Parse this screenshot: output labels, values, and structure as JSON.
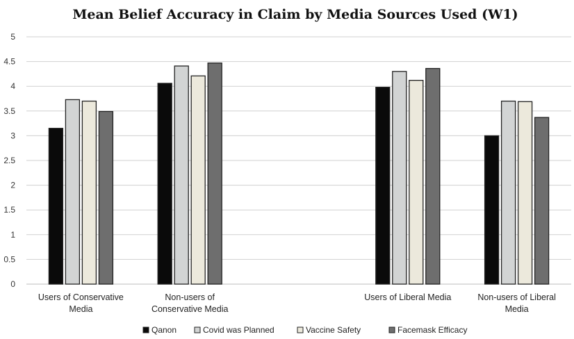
{
  "chart_data": {
    "type": "bar",
    "title": "Mean Belief Accuracy in Claim by Media Sources Used (W1)",
    "xlabel": "",
    "ylabel": "",
    "ylim": [
      0,
      5
    ],
    "yticks": [
      "0",
      "0.5",
      "1",
      "1.5",
      "2",
      "2.5",
      "3",
      "3.5",
      "4",
      "4.5",
      "5"
    ],
    "grid": true,
    "legend_position": "bottom",
    "categories": [
      [
        "Users of Conservative",
        "Media"
      ],
      [
        "Non-users of",
        "Conservative Media"
      ],
      [
        "Users of Liberal Media"
      ],
      [
        "Non-users of Liberal",
        "Media"
      ]
    ],
    "category_slots": [
      0,
      1,
      3,
      4
    ],
    "series": [
      {
        "name": "Qanon",
        "color": "#0a0a0a",
        "values": [
          3.15,
          4.06,
          3.98,
          3.0
        ]
      },
      {
        "name": "Covid was Planned",
        "color": "#d2d4d4",
        "values": [
          3.73,
          4.41,
          4.3,
          3.7
        ]
      },
      {
        "name": "Vaccine Safety",
        "color": "#ece9dc",
        "values": [
          3.7,
          4.21,
          4.12,
          3.69
        ]
      },
      {
        "name": "Facemask Efficacy",
        "color": "#6e6e6e",
        "values": [
          3.49,
          4.47,
          4.36,
          3.37
        ]
      }
    ]
  }
}
